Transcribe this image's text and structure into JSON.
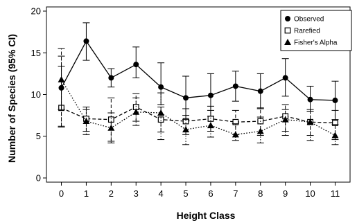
{
  "chart_data": {
    "type": "line",
    "xlabel": "Height Class",
    "ylabel": "Number of Species (95% CI)",
    "x": [
      0,
      1,
      2,
      3,
      4,
      5,
      6,
      7,
      8,
      9,
      10,
      11
    ],
    "xlim": [
      -0.6,
      11.6
    ],
    "ylim": [
      -0.5,
      20.5
    ],
    "xticks": [
      0,
      1,
      2,
      3,
      4,
      5,
      6,
      7,
      8,
      9,
      10,
      11
    ],
    "yticks": [
      0,
      5,
      10,
      15,
      20
    ],
    "grid": false,
    "legend_position": "top-right",
    "series": [
      {
        "name": "Observed",
        "marker": "filled-circle",
        "line_style": "solid",
        "error_style": "solid",
        "values": [
          10.8,
          16.4,
          12.0,
          13.6,
          10.9,
          9.6,
          9.9,
          11.0,
          10.4,
          12.0,
          9.4,
          9.3
        ],
        "lower": [
          8.2,
          14.1,
          10.9,
          12.0,
          8.8,
          7.0,
          7.4,
          9.2,
          8.3,
          9.8,
          8.0,
          7.0
        ],
        "upper": [
          13.4,
          18.6,
          13.1,
          15.7,
          13.8,
          12.2,
          12.5,
          12.8,
          12.5,
          14.3,
          11.0,
          11.6
        ]
      },
      {
        "name": "Rarefied",
        "marker": "open-square",
        "line_style": "dashed",
        "error_style": "dashed",
        "values": [
          8.4,
          7.1,
          7.0,
          8.5,
          7.0,
          6.8,
          7.1,
          6.7,
          6.8,
          7.4,
          6.7,
          6.6
        ],
        "lower": [
          6.1,
          5.6,
          4.4,
          6.8,
          5.5,
          5.2,
          5.6,
          5.2,
          5.1,
          5.6,
          5.1,
          4.6
        ],
        "upper": [
          15.5,
          8.5,
          9.6,
          10.1,
          8.5,
          8.3,
          8.6,
          8.1,
          8.4,
          8.8,
          8.2,
          8.1
        ]
      },
      {
        "name": "Fisher's Alpha",
        "marker": "filled-triangle",
        "line_style": "dotted",
        "error_style": "dotted",
        "values": [
          11.8,
          6.8,
          6.0,
          7.9,
          7.8,
          5.8,
          6.3,
          5.2,
          5.6,
          7.0,
          6.7,
          5.1
        ],
        "lower": [
          6.2,
          5.2,
          4.2,
          6.3,
          4.6,
          4.0,
          4.9,
          4.5,
          4.2,
          5.1,
          4.5,
          4.0
        ],
        "upper": [
          14.6,
          8.2,
          7.8,
          9.6,
          10.2,
          7.5,
          8.1,
          6.5,
          7.3,
          8.2,
          8.0,
          6.4
        ]
      }
    ]
  }
}
